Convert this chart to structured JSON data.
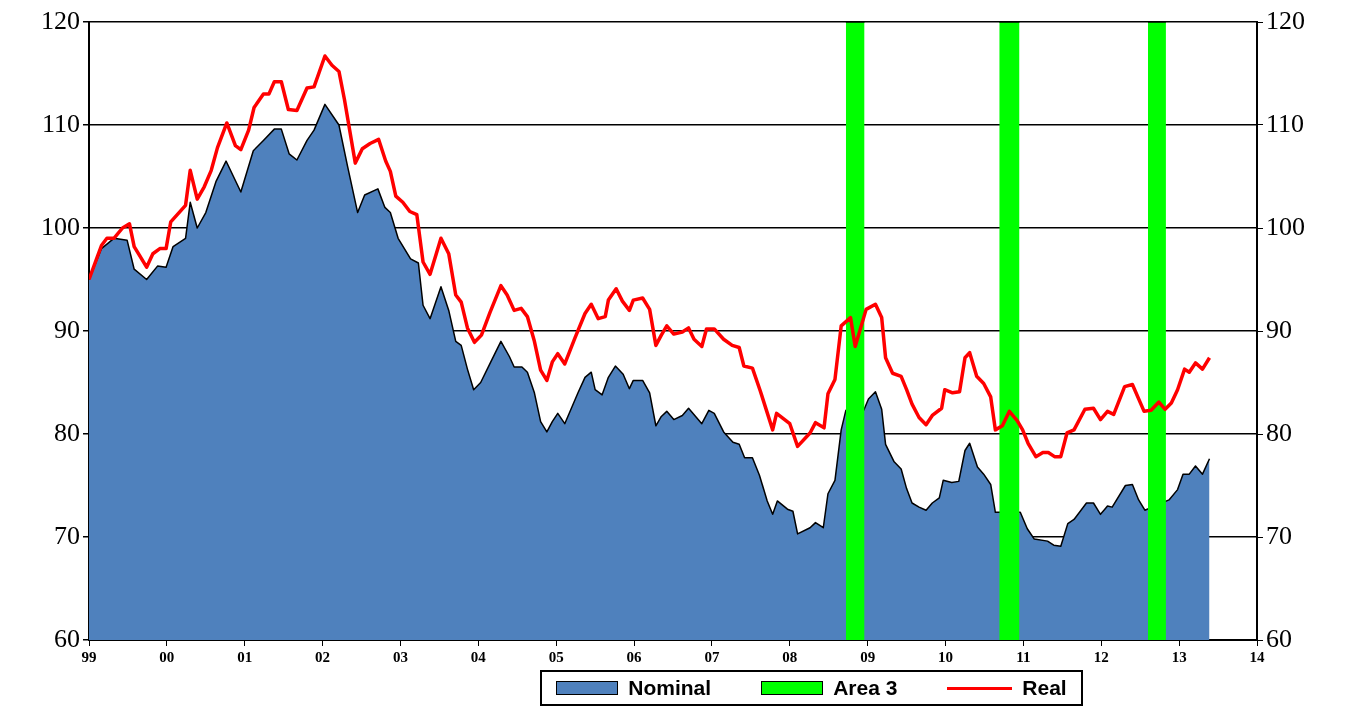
{
  "chart_data": {
    "type": "area",
    "xlim": [
      1999,
      2014
    ],
    "xticks": [
      {
        "value": 1999,
        "label": "99"
      },
      {
        "value": 2000,
        "label": "00"
      },
      {
        "value": 2001,
        "label": "01"
      },
      {
        "value": 2002,
        "label": "02"
      },
      {
        "value": 2003,
        "label": "03"
      },
      {
        "value": 2004,
        "label": "04"
      },
      {
        "value": 2005,
        "label": "05"
      },
      {
        "value": 2006,
        "label": "06"
      },
      {
        "value": 2007,
        "label": "07"
      },
      {
        "value": 2008,
        "label": "08"
      },
      {
        "value": 2009,
        "label": "09"
      },
      {
        "value": 2010,
        "label": "10"
      },
      {
        "value": 2011,
        "label": "11"
      },
      {
        "value": 2012,
        "label": "12"
      },
      {
        "value": 2013,
        "label": "13"
      },
      {
        "value": 2014,
        "label": "14"
      }
    ],
    "ylim": [
      60,
      120
    ],
    "yticks": [
      60,
      70,
      80,
      90,
      100,
      110,
      120
    ],
    "y2lim": [
      60,
      120
    ],
    "y2ticks": [
      60,
      70,
      80,
      90,
      100,
      110,
      120
    ],
    "grid": "y",
    "legend": "bottom",
    "marker": "none",
    "series": [
      {
        "name": "Nominal",
        "color": "#4f81bd",
        "x": [
          1999.0,
          1999.16,
          1999.32,
          1999.49,
          1999.58,
          1999.74,
          1999.88,
          1999.99,
          2000.08,
          2000.24,
          2000.3,
          2000.39,
          2000.5,
          2000.63,
          2000.76,
          2000.95,
          2001.11,
          2001.24,
          2001.38,
          2001.47,
          2001.57,
          2001.67,
          2001.8,
          2001.89,
          2002.03,
          2002.21,
          2002.32,
          2002.45,
          2002.54,
          2002.71,
          2002.8,
          2002.87,
          2002.97,
          2003.13,
          2003.23,
          2003.29,
          2003.38,
          2003.52,
          2003.62,
          2003.71,
          2003.78,
          2003.86,
          2003.94,
          2004.03,
          2004.16,
          2004.29,
          2004.4,
          2004.46,
          2004.56,
          2004.63,
          2004.72,
          2004.8,
          2004.88,
          2004.95,
          2005.02,
          2005.11,
          2005.28,
          2005.37,
          2005.45,
          2005.5,
          2005.59,
          2005.67,
          2005.76,
          2005.86,
          2005.94,
          2005.99,
          2006.11,
          2006.2,
          2006.28,
          2006.35,
          2006.42,
          2006.51,
          2006.62,
          2006.7,
          2006.87,
          2006.96,
          2007.03,
          2007.15,
          2007.27,
          2007.35,
          2007.42,
          2007.52,
          2007.61,
          2007.71,
          2007.78,
          2007.84,
          2007.97,
          2008.04,
          2008.1,
          2008.26,
          2008.33,
          2008.43,
          2008.49,
          2008.58,
          2008.66,
          2008.72,
          2008.95,
          2009.01,
          2009.1,
          2009.18,
          2009.23,
          2009.34,
          2009.43,
          2009.5,
          2009.57,
          2009.66,
          2009.75,
          2009.83,
          2009.92,
          2009.97,
          2010.08,
          2010.17,
          2010.25,
          2010.31,
          2010.41,
          2010.49,
          2010.58,
          2010.64,
          2010.96,
          2011.05,
          2011.14,
          2011.31,
          2011.39,
          2011.48,
          2011.57,
          2011.65,
          2011.81,
          2011.9,
          2011.99,
          2012.08,
          2012.14,
          2012.31,
          2012.4,
          2012.48,
          2012.56,
          2012.87,
          2012.98,
          2013.05,
          2013.13,
          2013.21,
          2013.3,
          2013.39
        ],
        "values": [
          95,
          98,
          99,
          98.8,
          96,
          95,
          96.3,
          96.2,
          98.2,
          99,
          102.5,
          100,
          101.5,
          104.5,
          106.5,
          103.5,
          107.5,
          108.5,
          109.6,
          109.6,
          107.2,
          106.6,
          108.5,
          109.5,
          112,
          110,
          106,
          101.5,
          103.2,
          103.8,
          102,
          101.5,
          99,
          97,
          96.6,
          92.5,
          91.2,
          94.3,
          92,
          89,
          88.6,
          86.3,
          84.3,
          85,
          87,
          89,
          87.5,
          86.5,
          86.5,
          86,
          84,
          81.2,
          80.2,
          81.2,
          82,
          81,
          84,
          85.5,
          86,
          84.3,
          83.8,
          85.5,
          86.6,
          85.8,
          84.4,
          85.2,
          85.2,
          84,
          80.8,
          81.7,
          82.2,
          81.4,
          81.8,
          82.5,
          81,
          82.3,
          82,
          80.2,
          79.2,
          79,
          77.7,
          77.7,
          76,
          73.5,
          72.2,
          73.5,
          72.7,
          72.5,
          70.3,
          70.9,
          71.4,
          70.9,
          74.2,
          75.5,
          80.4,
          82.3,
          82.3,
          83.4,
          84.1,
          82.4,
          79,
          77.3,
          76.6,
          74.7,
          73.3,
          72.9,
          72.6,
          73.3,
          73.8,
          75.5,
          75.3,
          75.4,
          78.4,
          79.1,
          76.8,
          76.1,
          75.1,
          72.4,
          72.4,
          70.8,
          69.8,
          69.6,
          69.2,
          69.1,
          71.3,
          71.7,
          73.3,
          73.3,
          72.2,
          73,
          72.9,
          75,
          75.1,
          73.6,
          72.6,
          73.6,
          74.6,
          76.1,
          76.1,
          76.9,
          76.1,
          77.6
        ]
      },
      {
        "name": "Area 3",
        "color": "#00ff00",
        "x": [
          2008.72,
          2008.96,
          2008.97,
          2010.69,
          2010.95,
          2010.96,
          2012.6,
          2012.83
        ],
        "values": [
          120,
          120,
          null,
          120,
          120,
          null,
          120,
          120
        ]
      },
      {
        "name": "Real",
        "type": "line",
        "color": "#ff0000",
        "x": [
          1999.0,
          1999.16,
          1999.23,
          1999.32,
          1999.43,
          1999.52,
          1999.58,
          1999.74,
          1999.82,
          1999.91,
          1999.99,
          2000.05,
          2000.24,
          2000.3,
          2000.39,
          2000.48,
          2000.57,
          2000.65,
          2000.77,
          2000.88,
          2000.95,
          2001.05,
          2001.12,
          2001.24,
          2001.31,
          2001.38,
          2001.47,
          2001.56,
          2001.67,
          2001.8,
          2001.89,
          2002.03,
          2002.12,
          2002.21,
          2002.28,
          2002.42,
          2002.51,
          2002.61,
          2002.72,
          2002.81,
          2002.87,
          2002.94,
          2003.03,
          2003.12,
          2003.21,
          2003.29,
          2003.38,
          2003.52,
          2003.62,
          2003.71,
          2003.78,
          2003.86,
          2003.95,
          2004.04,
          2004.15,
          2004.29,
          2004.37,
          2004.46,
          2004.55,
          2004.63,
          2004.72,
          2004.8,
          2004.88,
          2004.95,
          2005.02,
          2005.11,
          2005.24,
          2005.37,
          2005.45,
          2005.54,
          2005.63,
          2005.67,
          2005.77,
          2005.85,
          2005.94,
          2005.99,
          2006.11,
          2006.2,
          2006.28,
          2006.35,
          2006.42,
          2006.51,
          2006.62,
          2006.7,
          2006.77,
          2006.87,
          2006.93,
          2007.03,
          2007.15,
          2007.26,
          2007.35,
          2007.41,
          2007.52,
          2007.62,
          2007.78,
          2007.83,
          2008.0,
          2008.1,
          2008.26,
          2008.33,
          2008.44,
          2008.49,
          2008.58,
          2008.66,
          2008.78,
          2008.84,
          2008.98,
          2009.1,
          2009.18,
          2009.23,
          2009.32,
          2009.43,
          2009.5,
          2009.57,
          2009.66,
          2009.75,
          2009.83,
          2009.95,
          2009.99,
          2010.09,
          2010.18,
          2010.25,
          2010.31,
          2010.4,
          2010.49,
          2010.58,
          2010.64,
          2010.73,
          2010.82,
          2010.92,
          2010.99,
          2011.06,
          2011.16,
          2011.25,
          2011.32,
          2011.4,
          2011.48,
          2011.56,
          2011.65,
          2011.79,
          2011.9,
          2011.99,
          2012.08,
          2012.16,
          2012.3,
          2012.4,
          2012.55,
          2012.64,
          2012.74,
          2012.82,
          2012.9,
          2012.98,
          2013.07,
          2013.13,
          2013.21,
          2013.3,
          2013.39
        ],
        "values": [
          95,
          98.3,
          99,
          99,
          100,
          100.4,
          98.2,
          96.2,
          97.5,
          98,
          98,
          100.6,
          102.2,
          105.6,
          102.8,
          104,
          105.6,
          107.8,
          110.2,
          108,
          107.6,
          109.5,
          111.7,
          113,
          113,
          114.2,
          114.2,
          111.5,
          111.4,
          113.6,
          113.7,
          116.7,
          115.8,
          115.2,
          112.5,
          106.3,
          107.7,
          108.2,
          108.6,
          106.5,
          105.5,
          103.1,
          102.5,
          101.6,
          101.3,
          96.7,
          95.5,
          99,
          97.5,
          93.5,
          92.8,
          90.3,
          88.9,
          89.6,
          91.8,
          94.4,
          93.5,
          92,
          92.2,
          91.4,
          89,
          86.2,
          85.2,
          87,
          87.8,
          86.8,
          89.3,
          91.7,
          92.6,
          91.2,
          91.4,
          93,
          94.1,
          92.9,
          92,
          93,
          93.2,
          92.1,
          88.6,
          89.6,
          90.5,
          89.7,
          89.9,
          90.3,
          89.2,
          88.5,
          90.2,
          90.2,
          89.2,
          88.6,
          88.4,
          86.6,
          86.4,
          84.2,
          80.4,
          82,
          81,
          78.8,
          80.1,
          81.1,
          80.6,
          83.9,
          85.3,
          90.5,
          91.3,
          88.5,
          92.1,
          92.6,
          91.3,
          87.4,
          85.9,
          85.6,
          84.3,
          82.9,
          81.6,
          80.9,
          81.8,
          82.5,
          84.3,
          84,
          84.1,
          87.4,
          87.9,
          85.6,
          84.9,
          83.6,
          80.4,
          80.8,
          82.2,
          81.3,
          80.4,
          79.1,
          77.8,
          78.2,
          78.2,
          77.8,
          77.8,
          80.1,
          80.4,
          82.4,
          82.5,
          81.4,
          82.2,
          81.9,
          84.6,
          84.8,
          82.2,
          82.3,
          83.1,
          82.4,
          83,
          84.3,
          86.3,
          86,
          86.9,
          86.3,
          87.4
        ]
      }
    ]
  }
}
